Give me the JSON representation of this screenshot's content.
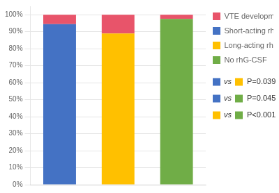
{
  "chart_data": {
    "type": "bar",
    "categories": [
      null,
      null,
      null
    ],
    "stacked": true,
    "series": [
      {
        "name": "VTE development",
        "color": "#E8546A",
        "values": [
          5.5,
          11.0,
          2.5
        ]
      },
      {
        "name": "Short-acting rhG-CSF",
        "color": "#4472C4",
        "values": [
          94.5,
          null,
          null
        ]
      },
      {
        "name": "Long-acting rhG-CSF",
        "color": "#FFC000",
        "values": [
          null,
          89.0,
          null
        ]
      },
      {
        "name": "No rhG-CSF",
        "color": "#70AD47",
        "values": [
          null,
          null,
          97.5
        ]
      }
    ],
    "ylim": [
      0,
      105
    ],
    "yticks": [
      {
        "value": 0,
        "label": "0%"
      },
      {
        "value": 10,
        "label": "10%"
      },
      {
        "value": 20,
        "label": "20%"
      },
      {
        "value": 30,
        "label": "30%"
      },
      {
        "value": 40,
        "label": "40%"
      },
      {
        "value": 50,
        "label": "50%"
      },
      {
        "value": 60,
        "label": "60%"
      },
      {
        "value": 70,
        "label": "70%"
      },
      {
        "value": 80,
        "label": "80%"
      },
      {
        "value": 90,
        "label": "90%"
      },
      {
        "value": 100,
        "label": "100%"
      }
    ],
    "grid": true,
    "legend": "right",
    "tick_labels": "y",
    "annotations": [
      {
        "text": "P=0.039",
        "colors": [
          "#4472C4",
          "#FFC000"
        ],
        "joiner": "vs"
      },
      {
        "text": "P=0.045",
        "colors": [
          "#4472C4",
          "#70AD47"
        ],
        "joiner": "vs"
      },
      {
        "text": "P<0.001",
        "colors": [
          "#FFC000",
          "#70AD47"
        ],
        "joiner": "vs"
      }
    ]
  }
}
